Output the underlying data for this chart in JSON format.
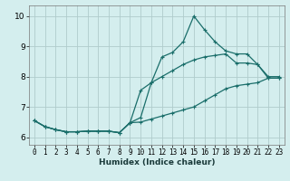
{
  "xlabel": "Humidex (Indice chaleur)",
  "ylabel": "",
  "background_color": "#d4eeee",
  "grid_color": "#b0cccc",
  "line_color": "#1a6e6a",
  "xlim": [
    -0.5,
    23.5
  ],
  "ylim": [
    5.75,
    10.35
  ],
  "xticks": [
    0,
    1,
    2,
    3,
    4,
    5,
    6,
    7,
    8,
    9,
    10,
    11,
    12,
    13,
    14,
    15,
    16,
    17,
    18,
    19,
    20,
    21,
    22,
    23
  ],
  "yticks": [
    6,
    7,
    8,
    9,
    10
  ],
  "series": [
    [
      6.55,
      6.35,
      6.25,
      6.18,
      6.18,
      6.2,
      6.2,
      6.2,
      6.15,
      6.48,
      6.65,
      7.8,
      8.65,
      8.8,
      9.15,
      10.0,
      9.55,
      9.15,
      8.85,
      8.75,
      8.75,
      8.4,
      7.95,
      7.95
    ],
    [
      6.55,
      6.35,
      6.25,
      6.18,
      6.18,
      6.2,
      6.2,
      6.2,
      6.15,
      6.48,
      7.55,
      7.8,
      8.0,
      8.2,
      8.4,
      8.55,
      8.65,
      8.7,
      8.75,
      8.45,
      8.45,
      8.4,
      8.0,
      8.0
    ],
    [
      6.55,
      6.35,
      6.25,
      6.18,
      6.18,
      6.2,
      6.2,
      6.2,
      6.15,
      6.48,
      6.5,
      6.6,
      6.7,
      6.8,
      6.9,
      7.0,
      7.2,
      7.4,
      7.6,
      7.7,
      7.75,
      7.8,
      7.95,
      7.95
    ]
  ]
}
